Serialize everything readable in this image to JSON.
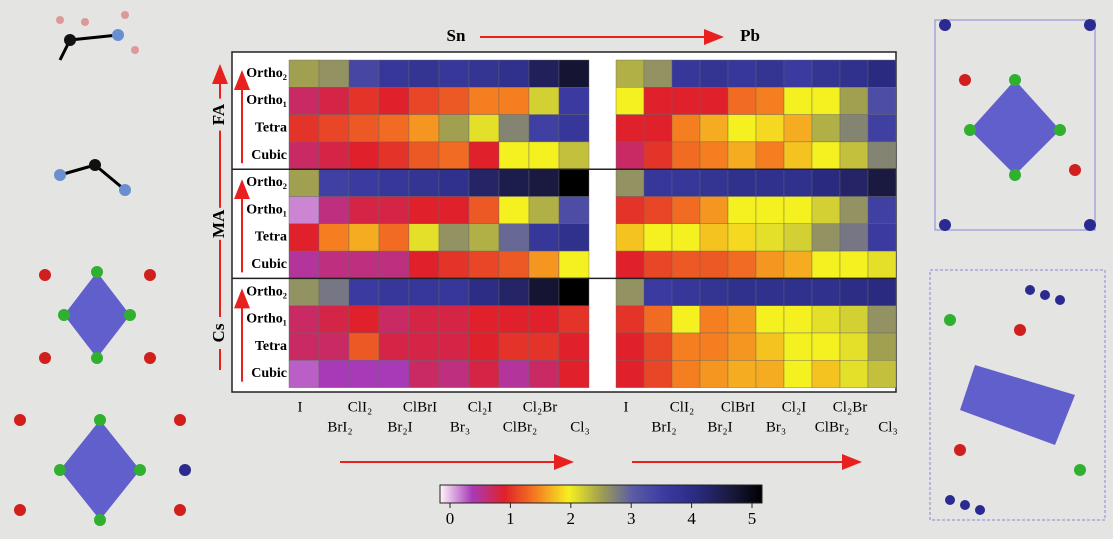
{
  "chart_data": {
    "type": "heatmap",
    "x_categories": [
      "I",
      "BrI₂",
      "ClI₂",
      "Br₂I",
      "ClBrI",
      "Br₃",
      "Cl₂I",
      "ClBr₂",
      "Cl₂Br",
      "Cl₃"
    ],
    "row_groups": [
      "FA",
      "MA",
      "Cs"
    ],
    "y_categories": [
      "Ortho₂",
      "Ortho₁",
      "Tetra",
      "Cubic"
    ],
    "panels": [
      {
        "title": "Sn",
        "values": [
          [
            2.5,
            2.6,
            3.3,
            3.6,
            3.7,
            3.6,
            3.7,
            3.8,
            4.3,
            4.6
          ],
          [
            0.8,
            0.9,
            1.1,
            1.0,
            1.2,
            1.3,
            1.5,
            1.5,
            2.2,
            3.5
          ],
          [
            1.1,
            1.2,
            1.3,
            1.4,
            1.6,
            2.5,
            2.1,
            2.7,
            3.4,
            3.6
          ],
          [
            0.8,
            0.9,
            1.0,
            1.1,
            1.3,
            1.4,
            1.0,
            2.0,
            2.0,
            2.3
          ],
          [
            2.5,
            3.4,
            3.5,
            3.6,
            3.7,
            3.8,
            4.2,
            4.4,
            4.5,
            5.0
          ],
          [
            0.3,
            0.7,
            0.9,
            0.9,
            1.0,
            1.0,
            1.3,
            2.0,
            2.4,
            3.2
          ],
          [
            1.0,
            1.5,
            1.7,
            1.4,
            2.1,
            2.6,
            2.4,
            2.9,
            3.6,
            3.8
          ],
          [
            0.6,
            0.7,
            0.7,
            0.7,
            1.0,
            1.1,
            1.2,
            1.3,
            1.6,
            2.0
          ],
          [
            2.6,
            2.8,
            3.5,
            3.6,
            3.6,
            3.6,
            3.9,
            4.2,
            4.6,
            5.0
          ],
          [
            0.8,
            0.9,
            1.0,
            0.8,
            0.9,
            0.9,
            1.0,
            1.0,
            1.0,
            1.1
          ],
          [
            0.8,
            0.8,
            1.3,
            0.9,
            0.9,
            0.9,
            1.0,
            1.1,
            1.1,
            1.0
          ],
          [
            0.4,
            0.5,
            0.5,
            0.5,
            0.8,
            0.7,
            0.9,
            0.6,
            0.8,
            1.0
          ]
        ]
      },
      {
        "title": "Pb",
        "values": [
          [
            2.4,
            2.6,
            3.6,
            3.7,
            3.6,
            3.7,
            3.5,
            3.7,
            3.8,
            4.0
          ],
          [
            2.0,
            1.0,
            1.0,
            1.0,
            1.4,
            1.5,
            2.0,
            2.0,
            2.5,
            3.2
          ],
          [
            1.0,
            1.0,
            1.5,
            1.7,
            2.0,
            1.9,
            1.7,
            2.4,
            2.7,
            3.4
          ],
          [
            0.8,
            1.1,
            1.4,
            1.5,
            1.7,
            1.5,
            1.8,
            2.0,
            2.3,
            2.7
          ],
          [
            2.6,
            3.6,
            3.6,
            3.7,
            3.8,
            3.8,
            3.8,
            4.0,
            4.2,
            4.5
          ],
          [
            1.1,
            1.2,
            1.4,
            1.6,
            2.0,
            2.0,
            2.0,
            2.2,
            2.6,
            3.4
          ],
          [
            1.8,
            2.0,
            2.0,
            1.8,
            1.9,
            2.1,
            2.2,
            2.6,
            2.8,
            3.5
          ],
          [
            1.0,
            1.2,
            1.3,
            1.3,
            1.4,
            1.6,
            1.7,
            2.0,
            2.0,
            2.1
          ],
          [
            2.6,
            3.5,
            3.6,
            3.7,
            3.8,
            3.8,
            3.8,
            3.8,
            3.9,
            4.0
          ],
          [
            1.1,
            1.4,
            2.0,
            1.5,
            1.6,
            2.0,
            2.0,
            2.1,
            2.2,
            2.6
          ],
          [
            1.0,
            1.2,
            1.5,
            1.5,
            1.6,
            1.8,
            2.0,
            2.0,
            2.1,
            2.5
          ],
          [
            1.0,
            1.2,
            1.5,
            1.6,
            1.7,
            1.7,
            2.0,
            1.8,
            2.1,
            2.3
          ]
        ]
      }
    ],
    "clim": [
      0,
      5
    ],
    "cticks": [
      0,
      1,
      2,
      3,
      4,
      5
    ],
    "colorscale": [
      "#fff5fa",
      "#a83ab8",
      "#e0202a",
      "#f57f20",
      "#f5f020",
      "#a0a050",
      "#5a5aa8",
      "#3a3aa0",
      "#2a2a80",
      "#1a1a40",
      "#000000"
    ]
  }
}
